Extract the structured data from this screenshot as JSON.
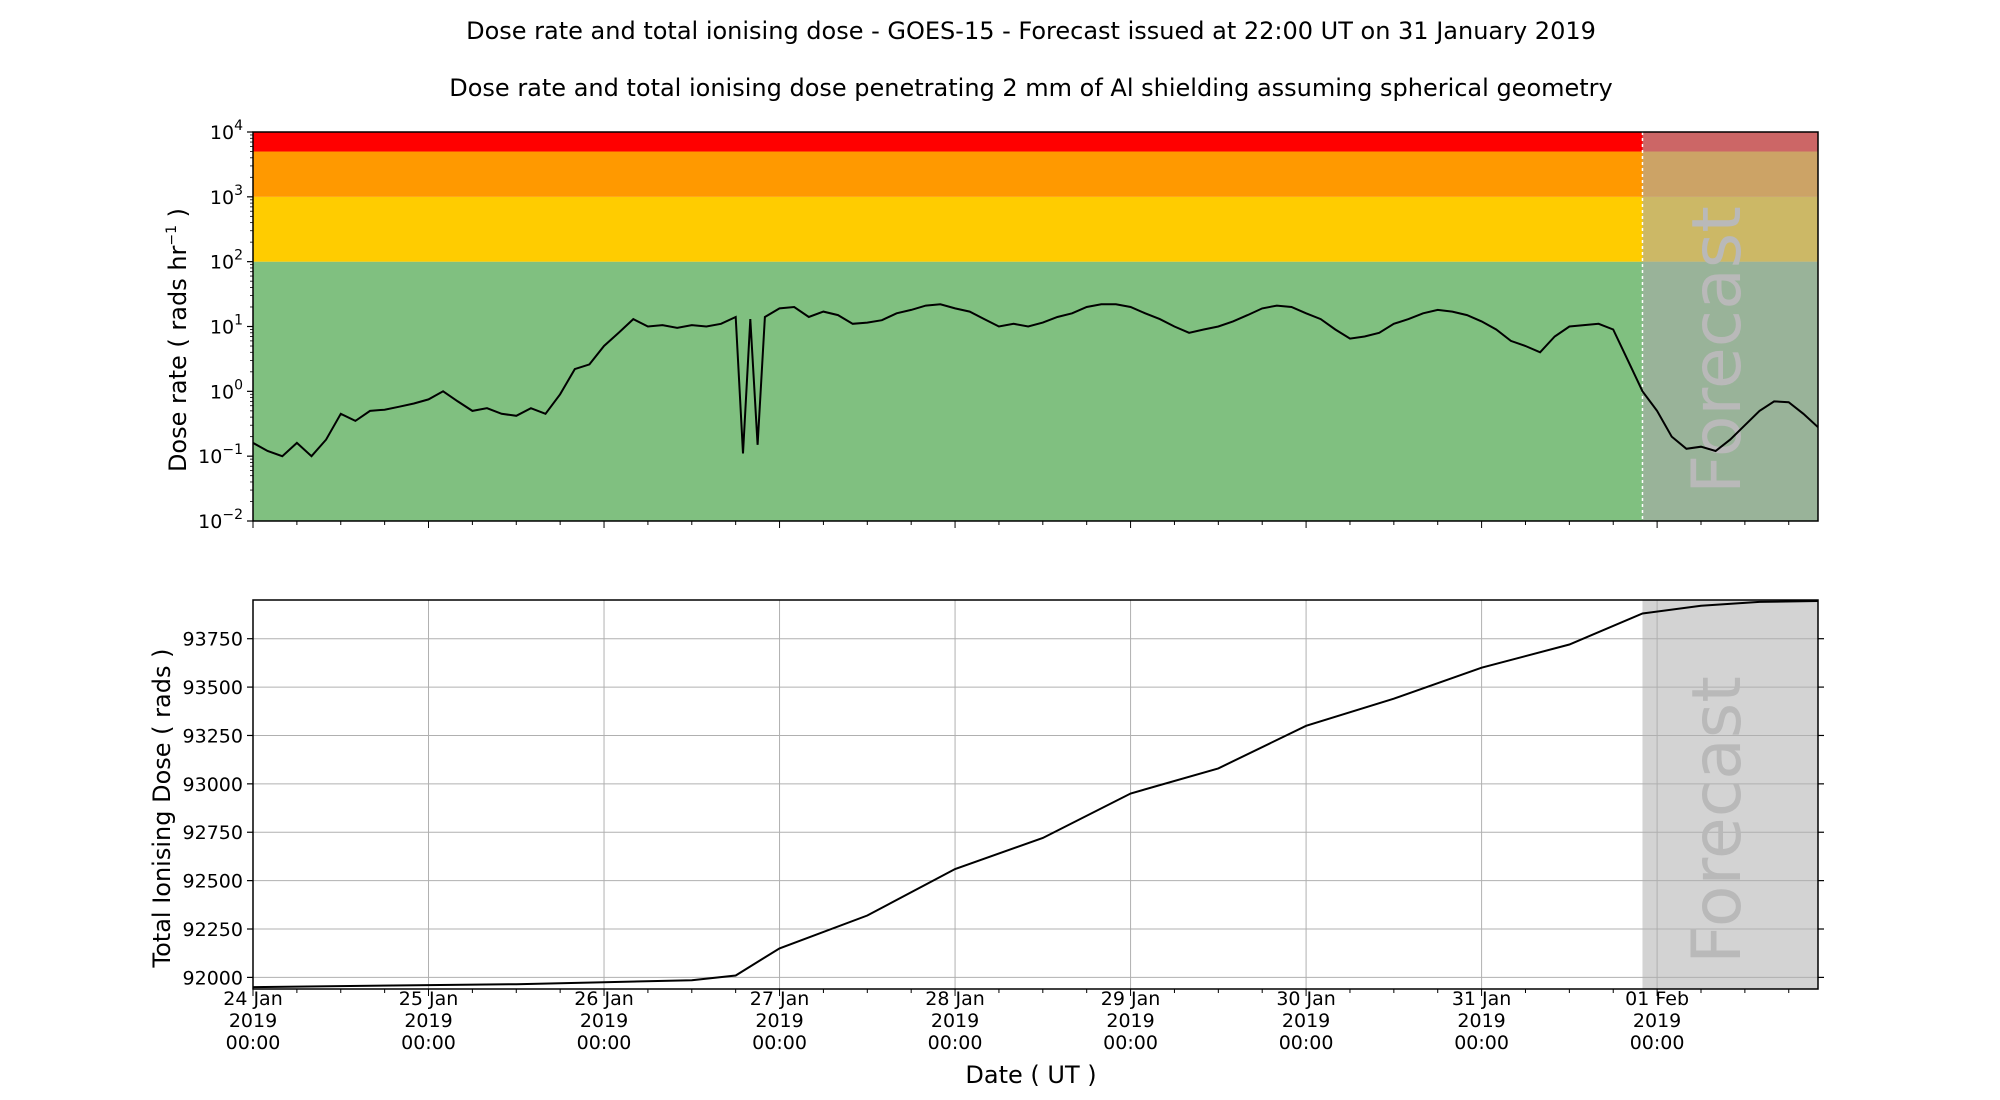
{
  "title": "Dose rate and total ionising dose - GOES-15 - Forecast issued at 22:00 UT on 31 January 2019",
  "subtitle": "Dose rate and total ionising dose penetrating 2 mm of Al shielding assuming spherical geometry",
  "forecast_label": "Forecast",
  "x_axis_label": "Date ( UT )",
  "x_ticks": [
    {
      "date": "24 Jan",
      "year": "2019",
      "time": "00:00"
    },
    {
      "date": "25 Jan",
      "year": "2019",
      "time": "00:00"
    },
    {
      "date": "26 Jan",
      "year": "2019",
      "time": "00:00"
    },
    {
      "date": "27 Jan",
      "year": "2019",
      "time": "00:00"
    },
    {
      "date": "28 Jan",
      "year": "2019",
      "time": "00:00"
    },
    {
      "date": "29 Jan",
      "year": "2019",
      "time": "00:00"
    },
    {
      "date": "30 Jan",
      "year": "2019",
      "time": "00:00"
    },
    {
      "date": "31 Jan",
      "year": "2019",
      "time": "00:00"
    },
    {
      "date": "01 Feb",
      "year": "2019",
      "time": "00:00"
    }
  ],
  "colors": {
    "green": "#80c080",
    "yellow": "#ffcc00",
    "orange": "#ff9900",
    "red": "#ff0000",
    "forecast_overlay": "#aaaaaa",
    "forecast_bg": "#d3d3d3",
    "line": "#000000",
    "grid": "#b0b0b0"
  },
  "chart_data": [
    {
      "type": "line",
      "ylabel_main": "Dose rate ( rads hr",
      "ylabel_exp": "−1",
      "ylabel_end": " )",
      "yscale": "log",
      "ylim": [
        0.01,
        10000
      ],
      "y_ticks": [
        {
          "base": "10",
          "exp": "−2",
          "value": 0.01
        },
        {
          "base": "10",
          "exp": "−1",
          "value": 0.1
        },
        {
          "base": "10",
          "exp": "0",
          "value": 1
        },
        {
          "base": "10",
          "exp": "1",
          "value": 10
        },
        {
          "base": "10",
          "exp": "2",
          "value": 100
        },
        {
          "base": "10",
          "exp": "3",
          "value": 1000
        },
        {
          "base": "10",
          "exp": "4",
          "value": 10000
        }
      ],
      "x_start": "2019-01-24 00:00",
      "x_end": "2019-02-01 22:00",
      "forecast_start": "2019-01-31 22:00",
      "bands": [
        {
          "from": 0.01,
          "to": 100,
          "color": "green"
        },
        {
          "from": 100,
          "to": 1000,
          "color": "yellow"
        },
        {
          "from": 1000,
          "to": 5000,
          "color": "orange"
        },
        {
          "from": 5000,
          "to": 10000,
          "color": "red"
        }
      ],
      "series": [
        {
          "points": [
            [
              "2019-01-24 00:00",
              0.16
            ],
            [
              "2019-01-24 02:00",
              0.12
            ],
            [
              "2019-01-24 04:00",
              0.1
            ],
            [
              "2019-01-24 06:00",
              0.16
            ],
            [
              "2019-01-24 08:00",
              0.1
            ],
            [
              "2019-01-24 10:00",
              0.18
            ],
            [
              "2019-01-24 12:00",
              0.45
            ],
            [
              "2019-01-24 14:00",
              0.35
            ],
            [
              "2019-01-24 16:00",
              0.5
            ],
            [
              "2019-01-24 18:00",
              0.52
            ],
            [
              "2019-01-24 20:00",
              0.58
            ],
            [
              "2019-01-24 22:00",
              0.65
            ],
            [
              "2019-01-25 00:00",
              0.75
            ],
            [
              "2019-01-25 02:00",
              1.0
            ],
            [
              "2019-01-25 04:00",
              0.7
            ],
            [
              "2019-01-25 06:00",
              0.5
            ],
            [
              "2019-01-25 08:00",
              0.55
            ],
            [
              "2019-01-25 10:00",
              0.45
            ],
            [
              "2019-01-25 12:00",
              0.42
            ],
            [
              "2019-01-25 14:00",
              0.55
            ],
            [
              "2019-01-25 16:00",
              0.45
            ],
            [
              "2019-01-25 18:00",
              0.9
            ],
            [
              "2019-01-25 20:00",
              2.2
            ],
            [
              "2019-01-25 22:00",
              2.6
            ],
            [
              "2019-01-26 00:00",
              5.0
            ],
            [
              "2019-01-26 02:00",
              8.0
            ],
            [
              "2019-01-26 04:00",
              13.0
            ],
            [
              "2019-01-26 06:00",
              10.0
            ],
            [
              "2019-01-26 08:00",
              10.5
            ],
            [
              "2019-01-26 10:00",
              9.5
            ],
            [
              "2019-01-26 12:00",
              10.5
            ],
            [
              "2019-01-26 14:00",
              10.0
            ],
            [
              "2019-01-26 16:00",
              11.0
            ],
            [
              "2019-01-26 18:00",
              14.0
            ],
            [
              "2019-01-26 19:00",
              0.11
            ],
            [
              "2019-01-26 20:00",
              13.0
            ],
            [
              "2019-01-26 21:00",
              0.15
            ],
            [
              "2019-01-26 22:00",
              14.0
            ],
            [
              "2019-01-27 00:00",
              19.0
            ],
            [
              "2019-01-27 02:00",
              20.0
            ],
            [
              "2019-01-27 04:00",
              14.0
            ],
            [
              "2019-01-27 06:00",
              17.0
            ],
            [
              "2019-01-27 08:00",
              15.0
            ],
            [
              "2019-01-27 10:00",
              11.0
            ],
            [
              "2019-01-27 12:00",
              11.5
            ],
            [
              "2019-01-27 14:00",
              12.5
            ],
            [
              "2019-01-27 16:00",
              16.0
            ],
            [
              "2019-01-27 18:00",
              18.0
            ],
            [
              "2019-01-27 20:00",
              21.0
            ],
            [
              "2019-01-27 22:00",
              22.0
            ],
            [
              "2019-01-28 00:00",
              19.0
            ],
            [
              "2019-01-28 02:00",
              17.0
            ],
            [
              "2019-01-28 04:00",
              13.0
            ],
            [
              "2019-01-28 06:00",
              10.0
            ],
            [
              "2019-01-28 08:00",
              11.0
            ],
            [
              "2019-01-28 10:00",
              10.0
            ],
            [
              "2019-01-28 12:00",
              11.5
            ],
            [
              "2019-01-28 14:00",
              14.0
            ],
            [
              "2019-01-28 16:00",
              16.0
            ],
            [
              "2019-01-28 18:00",
              20.0
            ],
            [
              "2019-01-28 20:00",
              22.0
            ],
            [
              "2019-01-28 22:00",
              22.0
            ],
            [
              "2019-01-29 00:00",
              20.0
            ],
            [
              "2019-01-29 02:00",
              16.0
            ],
            [
              "2019-01-29 04:00",
              13.0
            ],
            [
              "2019-01-29 06:00",
              10.0
            ],
            [
              "2019-01-29 08:00",
              8.0
            ],
            [
              "2019-01-29 10:00",
              9.0
            ],
            [
              "2019-01-29 12:00",
              10.0
            ],
            [
              "2019-01-29 14:00",
              12.0
            ],
            [
              "2019-01-29 16:00",
              15.0
            ],
            [
              "2019-01-29 18:00",
              19.0
            ],
            [
              "2019-01-29 20:00",
              21.0
            ],
            [
              "2019-01-29 22:00",
              20.0
            ],
            [
              "2019-01-30 00:00",
              16.0
            ],
            [
              "2019-01-30 02:00",
              13.0
            ],
            [
              "2019-01-30 04:00",
              9.0
            ],
            [
              "2019-01-30 06:00",
              6.5
            ],
            [
              "2019-01-30 08:00",
              7.0
            ],
            [
              "2019-01-30 10:00",
              8.0
            ],
            [
              "2019-01-30 12:00",
              11.0
            ],
            [
              "2019-01-30 14:00",
              13.0
            ],
            [
              "2019-01-30 16:00",
              16.0
            ],
            [
              "2019-01-30 18:00",
              18.0
            ],
            [
              "2019-01-30 20:00",
              17.0
            ],
            [
              "2019-01-30 22:00",
              15.0
            ],
            [
              "2019-01-31 00:00",
              12.0
            ],
            [
              "2019-01-31 02:00",
              9.0
            ],
            [
              "2019-01-31 04:00",
              6.0
            ],
            [
              "2019-01-31 06:00",
              5.0
            ],
            [
              "2019-01-31 08:00",
              4.0
            ],
            [
              "2019-01-31 10:00",
              7.0
            ],
            [
              "2019-01-31 12:00",
              10.0
            ],
            [
              "2019-01-31 14:00",
              10.5
            ],
            [
              "2019-01-31 16:00",
              11.0
            ],
            [
              "2019-01-31 18:00",
              9.0
            ],
            [
              "2019-01-31 20:00",
              3.0
            ],
            [
              "2019-01-31 22:00",
              1.0
            ],
            [
              "2019-02-01 00:00",
              0.5
            ],
            [
              "2019-02-01 02:00",
              0.2
            ],
            [
              "2019-02-01 04:00",
              0.13
            ],
            [
              "2019-02-01 06:00",
              0.14
            ],
            [
              "2019-02-01 08:00",
              0.12
            ],
            [
              "2019-02-01 10:00",
              0.18
            ],
            [
              "2019-02-01 12:00",
              0.3
            ],
            [
              "2019-02-01 14:00",
              0.5
            ],
            [
              "2019-02-01 16:00",
              0.7
            ],
            [
              "2019-02-01 18:00",
              0.68
            ],
            [
              "2019-02-01 20:00",
              0.45
            ],
            [
              "2019-02-01 22:00",
              0.28
            ]
          ]
        }
      ]
    },
    {
      "type": "line",
      "ylabel": "Total Ionising Dose ( rads )",
      "ylim": [
        91940,
        93950
      ],
      "y_ticks": [
        "92000",
        "92250",
        "92500",
        "92750",
        "93000",
        "93250",
        "93500",
        "93750"
      ],
      "x_start": "2019-01-24 00:00",
      "x_end": "2019-02-01 22:00",
      "forecast_start": "2019-01-31 22:00",
      "grid": true,
      "series": [
        {
          "points": [
            [
              "2019-01-24 00:00",
              91950
            ],
            [
              "2019-01-25 00:00",
              91960
            ],
            [
              "2019-01-25 12:00",
              91965
            ],
            [
              "2019-01-26 00:00",
              91975
            ],
            [
              "2019-01-26 12:00",
              91985
            ],
            [
              "2019-01-26 18:00",
              92010
            ],
            [
              "2019-01-27 00:00",
              92150
            ],
            [
              "2019-01-27 12:00",
              92320
            ],
            [
              "2019-01-28 00:00",
              92560
            ],
            [
              "2019-01-28 12:00",
              92720
            ],
            [
              "2019-01-29 00:00",
              92950
            ],
            [
              "2019-01-29 12:00",
              93080
            ],
            [
              "2019-01-30 00:00",
              93300
            ],
            [
              "2019-01-30 12:00",
              93440
            ],
            [
              "2019-01-31 00:00",
              93600
            ],
            [
              "2019-01-31 12:00",
              93720
            ],
            [
              "2019-01-31 22:00",
              93880
            ],
            [
              "2019-02-01 06:00",
              93920
            ],
            [
              "2019-02-01 14:00",
              93940
            ],
            [
              "2019-02-01 22:00",
              93945
            ]
          ]
        }
      ]
    }
  ]
}
